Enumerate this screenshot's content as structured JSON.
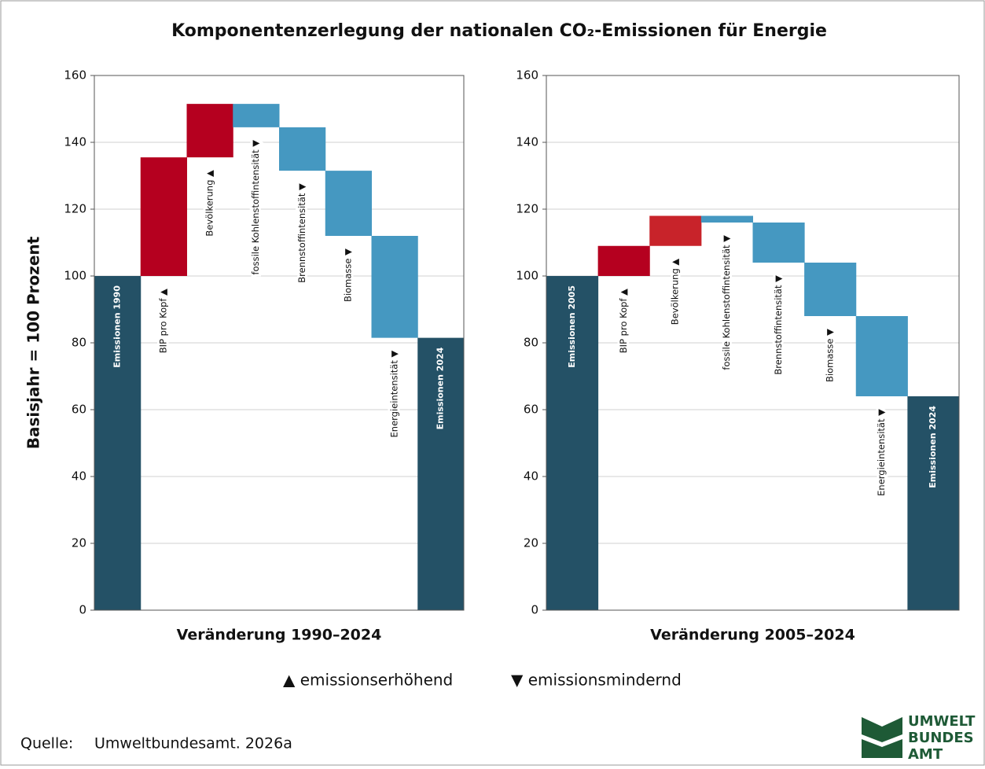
{
  "title": "Komponentenzerlegung der nationalen CO₂-Emissionen für Energie",
  "y_label": "Basisjahr = 100 Prozent",
  "legend": [
    "▲ emissionserhöhend",
    "▼ emissionsmindernd"
  ],
  "source": {
    "label": "Quelle:",
    "text": "Umweltbundesamt. 2026a"
  },
  "logo": [
    "UMWELT",
    "BUNDES",
    "AMT"
  ],
  "chart_data": [
    {
      "type": "waterfall",
      "x_label": "Veränderung 1990–2024",
      "categories": [
        "Emissionen 1990",
        "BIP pro Kopf ▲",
        "Bevölkerung ▲",
        "fossile Kohlenstoffintensität ▼",
        "Brennstoffintensität ▼",
        "Biomasse ▼",
        "Energieintensität ▼",
        "Emissionen 2024"
      ],
      "values": [
        100,
        35.5,
        16,
        -7,
        -13,
        -19.5,
        -30.5,
        81.5
      ],
      "measure": [
        "absolute",
        "relative",
        "relative",
        "relative",
        "relative",
        "relative",
        "relative",
        "absolute"
      ],
      "colors": [
        "#245166",
        "#b5001f",
        "#b5001f",
        "#4598c1",
        "#4598c1",
        "#4598c1",
        "#4598c1",
        "#245166"
      ],
      "ylim": [
        0,
        160
      ],
      "yticks": [
        0,
        20,
        40,
        60,
        80,
        100,
        120,
        140,
        160
      ],
      "grid": true
    },
    {
      "type": "waterfall",
      "x_label": "Veränderung 2005–2024",
      "categories": [
        "Emissionen 2005",
        "BIP pro Kopf ▲",
        "Bevölkerung ▲",
        "fossile Kohlenstoffintensität ▼",
        "Brennstoffintensität ▼",
        "Biomasse ▼",
        "Energieintensität ▼",
        "Emissionen 2024"
      ],
      "values": [
        100,
        9,
        9,
        -2,
        -12,
        -16,
        -24,
        64
      ],
      "measure": [
        "absolute",
        "relative",
        "relative",
        "relative",
        "relative",
        "relative",
        "relative",
        "absolute"
      ],
      "colors": [
        "#245166",
        "#b5001f",
        "#c8232a",
        "#4598c1",
        "#4598c1",
        "#4598c1",
        "#4598c1",
        "#245166"
      ],
      "ylim": [
        0,
        160
      ],
      "yticks": [
        0,
        20,
        40,
        60,
        80,
        100,
        120,
        140,
        160
      ],
      "grid": true
    }
  ]
}
